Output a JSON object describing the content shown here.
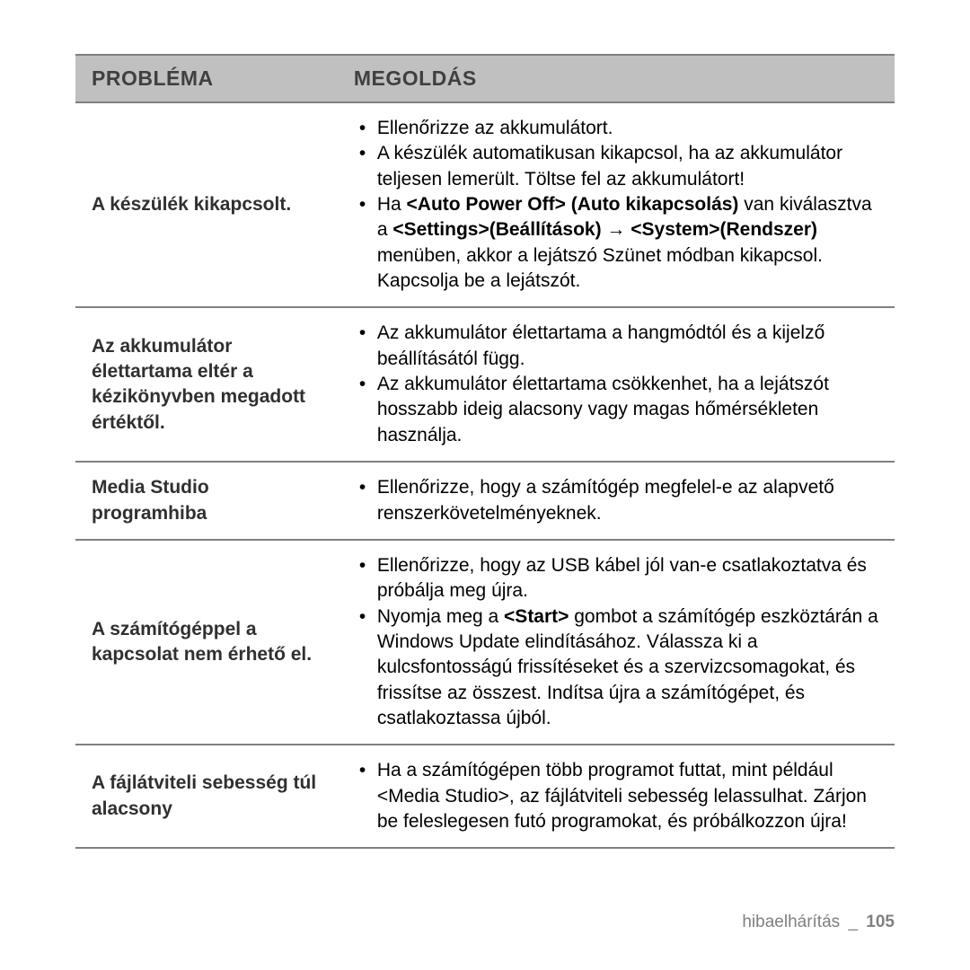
{
  "table": {
    "headers": {
      "problem": "PROBLÉMA",
      "solution": "MEGOLDÁS"
    },
    "rows": [
      {
        "problem": "A készülék kikapcsolt.",
        "solutions": [
          {
            "parts": [
              {
                "t": "Ellenőrizze az akkumulátort."
              }
            ]
          },
          {
            "parts": [
              {
                "t": "A készülék automatikusan kikapcsol, ha az akkumulátor teljesen lemerült. Töltse fel az akkumulátort!"
              }
            ]
          },
          {
            "parts": [
              {
                "t": "Ha "
              },
              {
                "t": "<Auto Power Off> (Auto kikapcsolás)",
                "b": true
              },
              {
                "t": " van kiválasztva a "
              },
              {
                "t": "<Settings>(Beállítások) →",
                "b": true
              },
              {
                "t": " "
              },
              {
                "t": "<System>(Rendszer)",
                "b": true
              },
              {
                "t": " menüben, akkor a lejátszó Szünet módban kikapcsol. Kapcsolja be a lejátszót."
              }
            ]
          }
        ]
      },
      {
        "problem": "Az akkumulátor élettartama eltér a kézikönyvben megadott értéktől.",
        "solutions": [
          {
            "parts": [
              {
                "t": "Az akkumulátor élettartama a hangmódtól és a kijelző beállításától függ."
              }
            ]
          },
          {
            "parts": [
              {
                "t": "Az akkumulátor élettartama csökkenhet, ha a lejátszót hosszabb ideig alacsony vagy magas hőmérsékleten használja."
              }
            ]
          }
        ]
      },
      {
        "problem": "Media Studio programhiba",
        "solutions": [
          {
            "parts": [
              {
                "t": "Ellenőrizze, hogy a számítógép megfelel-e az alapvető renszerkövetelményeknek."
              }
            ]
          }
        ]
      },
      {
        "problem": "A számítógéppel a kapcsolat nem érhető el.",
        "solutions": [
          {
            "parts": [
              {
                "t": "Ellenőrizze, hogy az USB kábel jól van-e csatlakoztatva és próbálja meg újra."
              }
            ]
          },
          {
            "parts": [
              {
                "t": "Nyomja meg a "
              },
              {
                "t": "<Start>",
                "b": true
              },
              {
                "t": " gombot a számítógép eszköztárán a Windows Update elindításához. Válassza ki a kulcsfontosságú frissítéseket és a szervizcsomagokat, és frissítse az összest. Indítsa újra a számítógépet, és csatlakoztassa újból."
              }
            ]
          }
        ]
      },
      {
        "problem": "A fájlátviteli sebesség túl alacsony",
        "solutions": [
          {
            "parts": [
              {
                "t": "Ha a számítógépen több programot futtat, mint például <Media Studio>, az fájlátviteli sebesség lelassulhat. Zárjon be feleslegesen futó programokat, és próbálkozzon újra!"
              }
            ]
          }
        ]
      }
    ]
  },
  "footer": {
    "section": "hibaelhárítás",
    "separator": "_",
    "page": "105"
  },
  "colors": {
    "header_bg": "#c0c0c0",
    "border": "#808080",
    "text": "#000000",
    "footer_text": "#808080"
  }
}
